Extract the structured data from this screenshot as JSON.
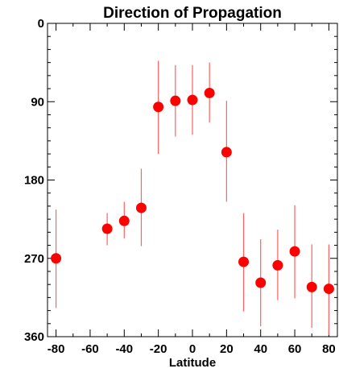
{
  "chart_data": {
    "type": "scatter",
    "title": "Direction of Propagation",
    "xlabel": "Latitude",
    "ylabel": "",
    "xlim": [
      -85,
      85
    ],
    "ylim": [
      0,
      360
    ],
    "y_inverted": true,
    "x_ticks": [
      -80,
      -60,
      -40,
      -20,
      0,
      20,
      40,
      60,
      80
    ],
    "x_tick_labels": [
      "-80",
      "-60",
      "-40",
      "-20",
      "0",
      "20",
      "40",
      "60",
      "80"
    ],
    "x_minor_step": 10,
    "y_ticks": [
      0,
      90,
      180,
      270,
      360
    ],
    "y_tick_labels": [
      "0",
      "90",
      "180",
      "270",
      "360"
    ],
    "y_minor_step": 15,
    "grid": false,
    "marker_color": "#ff0000",
    "errorbar_color": "#ff6060",
    "points": [
      {
        "x": -80,
        "y": 270,
        "y_low": 214,
        "y_high": 327
      },
      {
        "x": -50,
        "y": 236,
        "y_low": 218,
        "y_high": 255
      },
      {
        "x": -40,
        "y": 227,
        "y_low": 205,
        "y_high": 247
      },
      {
        "x": -30,
        "y": 212,
        "y_low": 167,
        "y_high": 256
      },
      {
        "x": -20,
        "y": 96,
        "y_low": 43,
        "y_high": 150
      },
      {
        "x": -10,
        "y": 89,
        "y_low": 48,
        "y_high": 130
      },
      {
        "x": 0,
        "y": 88,
        "y_low": 48,
        "y_high": 128
      },
      {
        "x": 10,
        "y": 80,
        "y_low": 45,
        "y_high": 114
      },
      {
        "x": 20,
        "y": 148,
        "y_low": 89,
        "y_high": 205
      },
      {
        "x": 30,
        "y": 274,
        "y_low": 218,
        "y_high": 331
      },
      {
        "x": 40,
        "y": 298,
        "y_low": 248,
        "y_high": 348
      },
      {
        "x": 50,
        "y": 278,
        "y_low": 237,
        "y_high": 318
      },
      {
        "x": 60,
        "y": 262,
        "y_low": 209,
        "y_high": 316
      },
      {
        "x": 70,
        "y": 303,
        "y_low": 254,
        "y_high": 350
      },
      {
        "x": 80,
        "y": 305,
        "y_low": 254,
        "y_high": 358
      }
    ]
  }
}
